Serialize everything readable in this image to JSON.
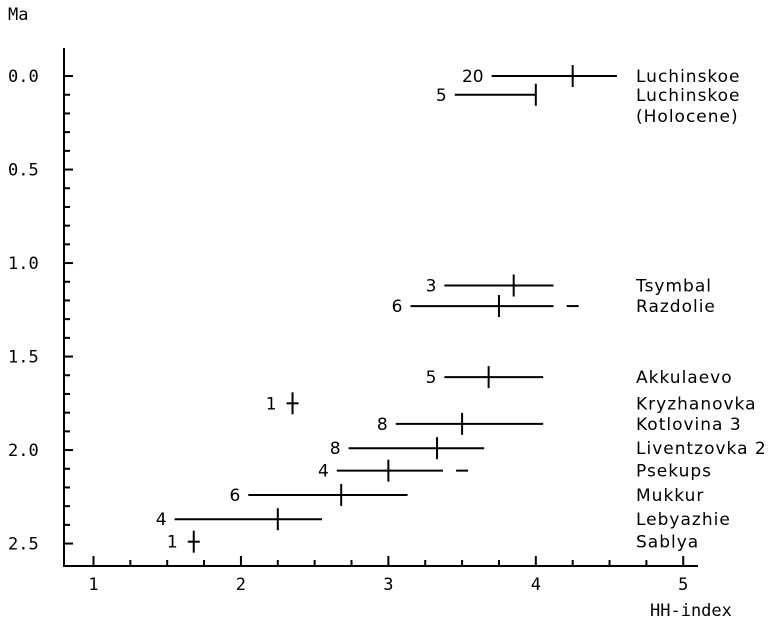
{
  "chart_data": {
    "type": "scatter",
    "title": "",
    "xlabel": "HH-index",
    "ylabel": "Ma",
    "xlim": [
      0.8,
      5.1
    ],
    "ylim": [
      2.62,
      -0.15
    ],
    "y_inverted": true,
    "grid": false,
    "legend": "none",
    "x_ticks": [
      1,
      2,
      3,
      4,
      5
    ],
    "y_ticks": [
      0.0,
      0.5,
      1.0,
      1.5,
      2.0,
      2.5
    ],
    "x_tick_labels": [
      "1",
      "2",
      "3",
      "4",
      "5"
    ],
    "y_tick_labels": [
      "0.0",
      "0.5",
      "1.0",
      "1.5",
      "2.0",
      "2.5"
    ],
    "points": [
      {
        "site": "Luchinskoe",
        "site_line2": "",
        "age_ma": 0.0,
        "n": "20",
        "mean": 4.25,
        "low": 3.7,
        "high": 4.55,
        "extra_mark": null
      },
      {
        "site": "Luchinskoe",
        "site_line2": "(Holocene)",
        "age_ma": 0.1,
        "n": "5",
        "mean": 4.0,
        "low": 3.45,
        "high": 4.0,
        "extra_mark": null
      },
      {
        "site": "Tsymbal",
        "site_line2": "",
        "age_ma": 1.12,
        "n": "3",
        "mean": 3.85,
        "low": 3.38,
        "high": 4.12,
        "extra_mark": null
      },
      {
        "site": "Razdolie",
        "site_line2": "",
        "age_ma": 1.23,
        "n": "6",
        "mean": 3.75,
        "low": 3.15,
        "high": 4.12,
        "extra_mark": 4.25
      },
      {
        "site": "Akkulaevo",
        "site_line2": "",
        "age_ma": 1.61,
        "n": "5",
        "mean": 3.68,
        "low": 3.38,
        "high": 4.05,
        "extra_mark": null
      },
      {
        "site": "Kryzhanovka",
        "site_line2": "",
        "age_ma": 1.75,
        "n": "1",
        "mean": 2.35,
        "low": 2.35,
        "high": 2.35,
        "extra_mark": null
      },
      {
        "site": "Kotlovina 3",
        "site_line2": "",
        "age_ma": 1.86,
        "n": "8",
        "mean": 3.5,
        "low": 3.05,
        "high": 4.05,
        "extra_mark": null
      },
      {
        "site": "Liventzovka 2",
        "site_line2": "",
        "age_ma": 1.99,
        "n": "8",
        "mean": 3.33,
        "low": 2.73,
        "high": 3.65,
        "extra_mark": null
      },
      {
        "site": "Psekups",
        "site_line2": "",
        "age_ma": 2.11,
        "n": "4",
        "mean": 3.0,
        "low": 2.65,
        "high": 3.37,
        "extra_mark": 3.5
      },
      {
        "site": "Mukkur",
        "site_line2": "",
        "age_ma": 2.24,
        "n": "6",
        "mean": 2.68,
        "low": 2.05,
        "high": 3.13,
        "extra_mark": null
      },
      {
        "site": "Lebyazhie",
        "site_line2": "",
        "age_ma": 2.37,
        "n": "4",
        "mean": 2.25,
        "low": 1.55,
        "high": 2.55,
        "extra_mark": null
      },
      {
        "site": "Sablya",
        "site_line2": "",
        "age_ma": 2.49,
        "n": "1",
        "mean": 1.68,
        "low": 1.68,
        "high": 1.68,
        "extra_mark": null
      }
    ]
  }
}
